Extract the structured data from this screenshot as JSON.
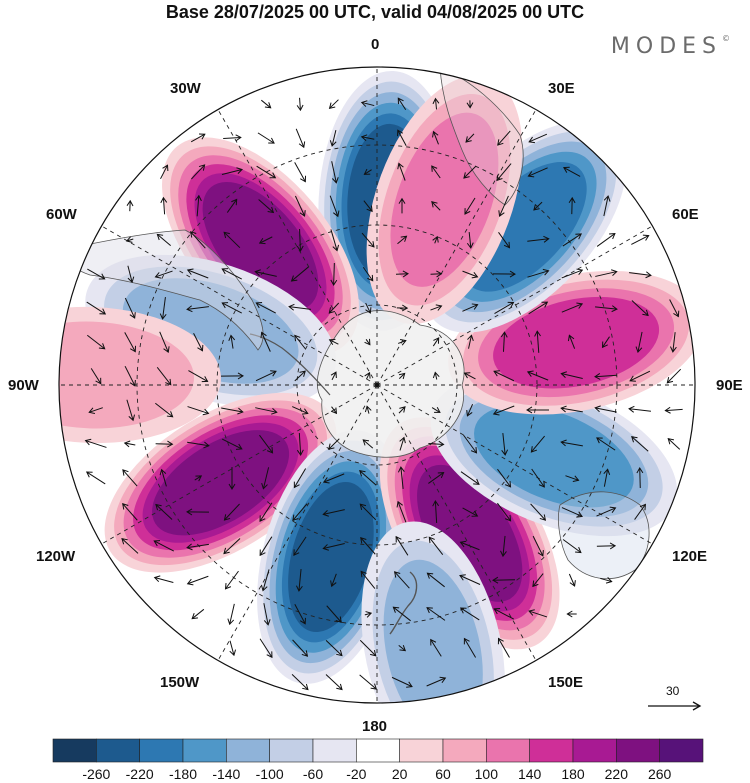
{
  "header": {
    "title": "Base 28/07/2025 00 UTC, valid 04/08/2025 00 UTC",
    "brand": "MODES",
    "brand_mark": "©"
  },
  "map": {
    "projection": "south-polar-stereographic",
    "longitude_labels": {
      "top": "0",
      "bottom": "180",
      "left": "90W",
      "right": "90E",
      "upper_left_1": "30W",
      "upper_left_2": "60W",
      "upper_right_1": "30E",
      "upper_right_2": "60E",
      "lower_left_1": "120W",
      "lower_left_2": "150W",
      "lower_right_1": "120E",
      "lower_right_2": "150E"
    },
    "wind_scale_label": "30"
  },
  "colorbar": {
    "ticks": [
      "-260",
      "-220",
      "-180",
      "-140",
      "-100",
      "-60",
      "-20",
      "20",
      "60",
      "100",
      "140",
      "180",
      "220",
      "260"
    ],
    "colors": [
      "#163a5f",
      "#1d5a8e",
      "#2d78b2",
      "#4f97c8",
      "#8fb3d9",
      "#c3cfe6",
      "#e6e6f2",
      "#ffffff",
      "#f8d3d8",
      "#f4a9bd",
      "#ea74ad",
      "#cf2f98",
      "#a81a93",
      "#7e1180",
      "#571279"
    ]
  },
  "anomalies": [
    {
      "name": "north-low",
      "angle": 3,
      "r": 0.58,
      "value": -230
    },
    {
      "name": "northwest-high",
      "angle": -40,
      "r": 0.57,
      "value": 250
    },
    {
      "name": "west-low",
      "angle": -72,
      "r": 0.55,
      "value": -120
    },
    {
      "name": "southwest-high",
      "angle": -122,
      "r": 0.58,
      "value": 250
    },
    {
      "name": "south-low",
      "angle": -165,
      "r": 0.56,
      "value": -230
    },
    {
      "name": "southeast-high",
      "angle": 148,
      "r": 0.55,
      "value": 250
    },
    {
      "name": "east-low",
      "angle": 112,
      "r": 0.6,
      "value": -170
    },
    {
      "name": "east-high",
      "angle": 78,
      "r": 0.64,
      "value": 170
    },
    {
      "name": "northeast-low",
      "angle": 43,
      "r": 0.68,
      "value": -180
    },
    {
      "name": "northeast-high",
      "angle": 20,
      "r": 0.62,
      "value": 130
    },
    {
      "name": "far-west-high",
      "angle": -88,
      "r": 0.9,
      "value": 70
    },
    {
      "name": "south-small-low",
      "angle": 168,
      "r": 0.85,
      "value": -100
    }
  ]
}
